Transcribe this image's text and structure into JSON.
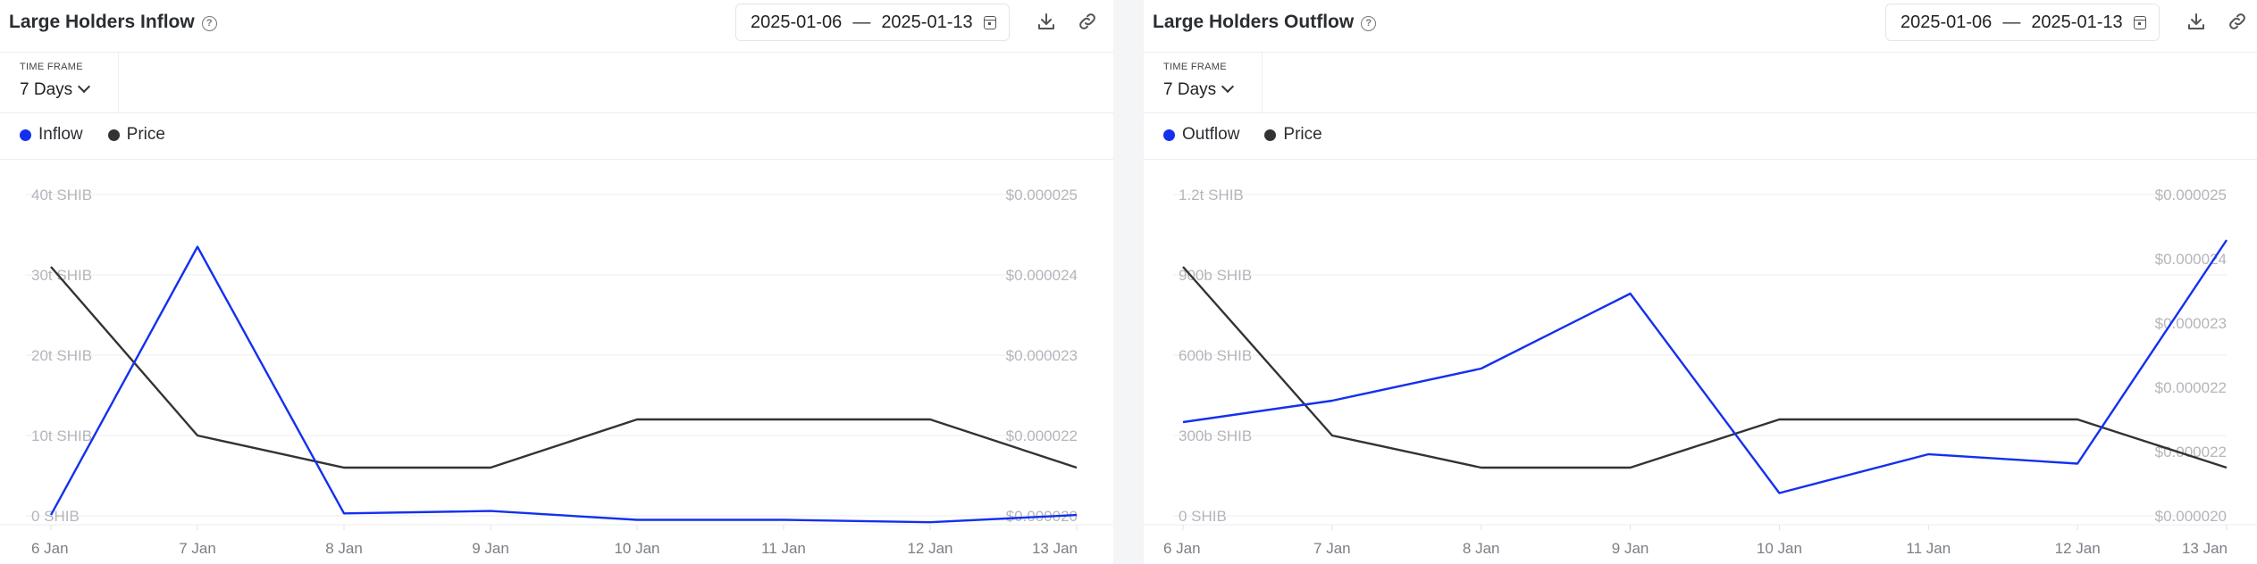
{
  "colors": {
    "flow": "#1430ee",
    "price": "#333333"
  },
  "panels": [
    {
      "title": "Large Holders Inflow",
      "help_icon": "help-circle-icon",
      "date_start": "2025-01-06",
      "date_sep": "—",
      "date_end": "2025-01-13",
      "timeframe_label": "TIME FRAME",
      "timeframe_value": "7 Days",
      "legend": [
        "Inflow",
        "Price"
      ]
    },
    {
      "title": "Large Holders Outflow",
      "help_icon": "help-circle-icon",
      "date_start": "2025-01-06",
      "date_sep": "—",
      "date_end": "2025-01-13",
      "timeframe_label": "TIME FRAME",
      "timeframe_value": "7 Days",
      "legend": [
        "Outflow",
        "Price"
      ]
    }
  ],
  "chart_data": [
    {
      "type": "line",
      "categories": [
        "6 Jan",
        "7 Jan",
        "8 Jan",
        "9 Jan",
        "10 Jan",
        "11 Jan",
        "12 Jan",
        "13 Jan"
      ],
      "left_axis": {
        "ticks": [
          "0 SHIB",
          "10t SHIB",
          "20t SHIB",
          "30t SHIB",
          "40t SHIB"
        ],
        "range": [
          0,
          40
        ],
        "unit": "t SHIB"
      },
      "right_axis": {
        "ticks": [
          "$0.000020",
          "$0.000022",
          "$0.000023",
          "$0.000024",
          "$0.000025"
        ],
        "range": [
          2.1e-05,
          2.5e-05
        ]
      },
      "series": [
        {
          "name": "Inflow",
          "axis": "left",
          "values": [
            0.1,
            33.5,
            0.3,
            0.6,
            -0.5,
            -0.5,
            -0.8,
            0.1
          ]
        },
        {
          "name": "Price",
          "axis": "right",
          "values": [
            2.41e-05,
            2.2e-05,
            2.16e-05,
            2.16e-05,
            2.22e-05,
            2.22e-05,
            2.22e-05,
            2.16e-05
          ]
        }
      ],
      "grid": true
    },
    {
      "type": "line",
      "categories": [
        "6 Jan",
        "7 Jan",
        "8 Jan",
        "9 Jan",
        "10 Jan",
        "11 Jan",
        "12 Jan",
        "13 Jan"
      ],
      "left_axis": {
        "ticks": [
          "0 SHIB",
          "300b SHIB",
          "600b SHIB",
          "900b SHIB",
          "1.2t SHIB"
        ],
        "range": [
          0,
          1200
        ],
        "unit": "b SHIB"
      },
      "right_axis": {
        "ticks": [
          "$0.000020",
          "$0.000022",
          "$0.000022",
          "$0.000023",
          "$0.000024",
          "$0.000025"
        ],
        "range": [
          2.1e-05,
          2.5e-05
        ]
      },
      "series": [
        {
          "name": "Outflow",
          "axis": "left",
          "values": [
            350,
            430,
            550,
            830,
            85,
            230,
            195,
            1030
          ]
        },
        {
          "name": "Price",
          "axis": "right",
          "values": [
            2.41e-05,
            2.2e-05,
            2.16e-05,
            2.16e-05,
            2.22e-05,
            2.22e-05,
            2.22e-05,
            2.16e-05
          ]
        }
      ],
      "grid": true
    }
  ]
}
